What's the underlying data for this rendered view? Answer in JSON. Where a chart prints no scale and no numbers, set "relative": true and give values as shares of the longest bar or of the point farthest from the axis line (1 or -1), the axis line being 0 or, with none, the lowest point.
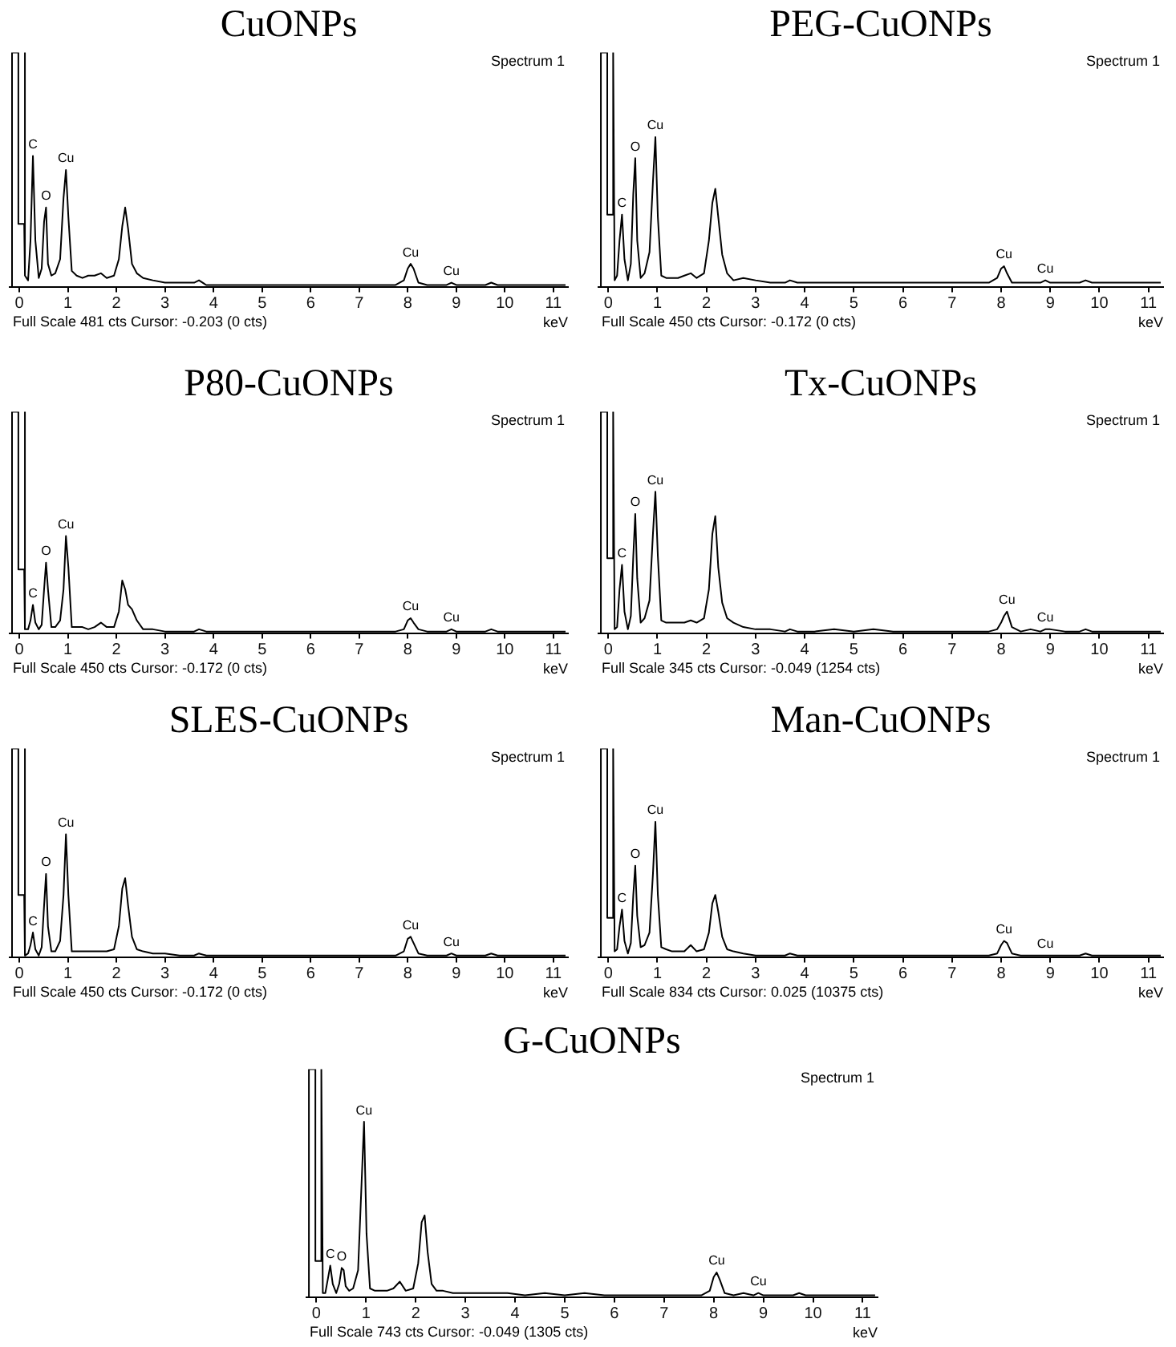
{
  "chart_data": [
    {
      "type": "line",
      "title": "CuONPs",
      "xlabel": "keV",
      "relative": true,
      "xlim": [
        -0.2,
        11.3
      ],
      "xticks": [
        0,
        1,
        2,
        3,
        4,
        5,
        6,
        7,
        8,
        9,
        10,
        11
      ],
      "grid": false,
      "marker": "none",
      "color": "#000000",
      "x": [
        -0.16,
        -0.15,
        -0.02,
        -0.02,
        0.1,
        0.1,
        0.13,
        0.18,
        0.23,
        0.28,
        0.33,
        0.4,
        0.46,
        0.51,
        0.55,
        0.59,
        0.66,
        0.74,
        0.84,
        0.91,
        0.96,
        1.01,
        1.08,
        1.18,
        1.3,
        1.42,
        1.55,
        1.68,
        1.8,
        1.95,
        2.05,
        2.12,
        2.18,
        2.24,
        2.32,
        2.42,
        2.55,
        2.75,
        3.0,
        3.3,
        3.6,
        3.7,
        3.85,
        4.2,
        4.6,
        5.0,
        5.4,
        5.8,
        6.2,
        6.6,
        7.0,
        7.4,
        7.75,
        7.92,
        8.0,
        8.06,
        8.12,
        8.22,
        8.4,
        8.6,
        8.8,
        8.9,
        9.0,
        9.3,
        9.6,
        9.72,
        9.85,
        10.2,
        10.6,
        11.0,
        11.25
      ],
      "values": [
        0,
        1,
        1,
        0.27,
        0.27,
        1,
        0.05,
        0.03,
        0.2,
        0.56,
        0.2,
        0.04,
        0.08,
        0.28,
        0.34,
        0.1,
        0.05,
        0.06,
        0.12,
        0.38,
        0.5,
        0.3,
        0.07,
        0.05,
        0.04,
        0.05,
        0.05,
        0.06,
        0.04,
        0.05,
        0.12,
        0.26,
        0.34,
        0.25,
        0.1,
        0.06,
        0.04,
        0.03,
        0.02,
        0.02,
        0.02,
        0.03,
        0.01,
        0.01,
        0.01,
        0.01,
        0.01,
        0.01,
        0.01,
        0.01,
        0.01,
        0.01,
        0.01,
        0.03,
        0.08,
        0.1,
        0.08,
        0.02,
        0.01,
        0.01,
        0.01,
        0.02,
        0.01,
        0.01,
        0.01,
        0.02,
        0.01,
        0.01,
        0.01,
        0.01,
        0.01
      ],
      "annotations": [
        "Spectrum 1",
        "Full Scale 481 cts Cursor: -0.203 (0 cts)",
        {
          "text": "C",
          "x": 0.28,
          "y": 0.56
        },
        {
          "text": "O",
          "x": 0.55,
          "y": 0.34
        },
        {
          "text": "Cu",
          "x": 0.96,
          "y": 0.5
        },
        {
          "text": "Cu",
          "x": 8.06,
          "y": 0.1
        },
        {
          "text": "Cu",
          "x": 8.9,
          "y": 0.02
        }
      ]
    },
    {
      "type": "line",
      "title": "PEG-CuONPs",
      "xlabel": "keV",
      "relative": true,
      "xlim": [
        -0.2,
        11.3
      ],
      "xticks": [
        0,
        1,
        2,
        3,
        4,
        5,
        6,
        7,
        8,
        9,
        10,
        11
      ],
      "grid": false,
      "marker": "none",
      "color": "#000000",
      "x": [
        -0.16,
        -0.15,
        -0.02,
        -0.02,
        0.1,
        0.1,
        0.13,
        0.18,
        0.23,
        0.28,
        0.33,
        0.4,
        0.46,
        0.51,
        0.55,
        0.59,
        0.66,
        0.74,
        0.84,
        0.91,
        0.96,
        1.01,
        1.08,
        1.18,
        1.3,
        1.42,
        1.55,
        1.68,
        1.8,
        1.95,
        2.05,
        2.12,
        2.18,
        2.24,
        2.32,
        2.42,
        2.55,
        2.75,
        3.0,
        3.3,
        3.6,
        3.7,
        3.85,
        4.2,
        4.6,
        5.0,
        5.4,
        5.8,
        6.2,
        6.6,
        7.0,
        7.4,
        7.75,
        7.92,
        8.0,
        8.06,
        8.12,
        8.22,
        8.4,
        8.6,
        8.8,
        8.9,
        9.0,
        9.3,
        9.6,
        9.72,
        9.85,
        10.2,
        10.6,
        11.0,
        11.25
      ],
      "values": [
        0,
        1,
        1,
        0.31,
        0.31,
        1,
        0.03,
        0.05,
        0.2,
        0.31,
        0.12,
        0.03,
        0.1,
        0.4,
        0.55,
        0.2,
        0.04,
        0.06,
        0.15,
        0.45,
        0.64,
        0.3,
        0.05,
        0.04,
        0.04,
        0.04,
        0.05,
        0.06,
        0.04,
        0.06,
        0.2,
        0.36,
        0.42,
        0.3,
        0.14,
        0.06,
        0.03,
        0.04,
        0.03,
        0.02,
        0.02,
        0.03,
        0.02,
        0.02,
        0.02,
        0.02,
        0.02,
        0.02,
        0.02,
        0.02,
        0.02,
        0.02,
        0.02,
        0.04,
        0.08,
        0.09,
        0.06,
        0.02,
        0.02,
        0.02,
        0.02,
        0.03,
        0.02,
        0.02,
        0.02,
        0.03,
        0.02,
        0.02,
        0.02,
        0.02,
        0.02
      ],
      "annotations": [
        "Spectrum 1",
        "Full Scale 450 cts Cursor: -0.172 (0 cts)",
        {
          "text": "C",
          "x": 0.28,
          "y": 0.31
        },
        {
          "text": "O",
          "x": 0.55,
          "y": 0.55
        },
        {
          "text": "Cu",
          "x": 0.96,
          "y": 0.64
        },
        {
          "text": "Cu",
          "x": 8.06,
          "y": 0.09
        },
        {
          "text": "Cu",
          "x": 8.9,
          "y": 0.03
        }
      ]
    },
    {
      "type": "line",
      "title": "P80-CuONPs",
      "xlabel": "keV",
      "relative": true,
      "xlim": [
        -0.2,
        11.3
      ],
      "xticks": [
        0,
        1,
        2,
        3,
        4,
        5,
        6,
        7,
        8,
        9,
        10,
        11
      ],
      "grid": false,
      "marker": "none",
      "color": "#000000",
      "x": [
        -0.16,
        -0.15,
        -0.02,
        -0.02,
        0.1,
        0.1,
        0.13,
        0.18,
        0.23,
        0.28,
        0.33,
        0.4,
        0.46,
        0.51,
        0.55,
        0.59,
        0.66,
        0.74,
        0.84,
        0.91,
        0.96,
        1.01,
        1.08,
        1.18,
        1.3,
        1.42,
        1.55,
        1.68,
        1.8,
        1.95,
        2.05,
        2.12,
        2.18,
        2.24,
        2.32,
        2.42,
        2.55,
        2.75,
        3.0,
        3.3,
        3.6,
        3.7,
        3.85,
        4.2,
        4.6,
        5.0,
        5.4,
        5.8,
        6.2,
        6.6,
        7.0,
        7.4,
        7.75,
        7.92,
        8.0,
        8.06,
        8.12,
        8.22,
        8.4,
        8.6,
        8.8,
        8.9,
        9.0,
        9.3,
        9.6,
        9.72,
        9.85,
        10.2,
        10.6,
        11.0,
        11.25
      ],
      "values": [
        0,
        1,
        1,
        0.29,
        0.29,
        1,
        0.02,
        0.02,
        0.06,
        0.13,
        0.05,
        0.02,
        0.04,
        0.2,
        0.32,
        0.2,
        0.03,
        0.03,
        0.06,
        0.2,
        0.44,
        0.3,
        0.03,
        0.03,
        0.03,
        0.02,
        0.03,
        0.05,
        0.03,
        0.03,
        0.1,
        0.24,
        0.2,
        0.13,
        0.11,
        0.06,
        0.02,
        0.02,
        0.01,
        0.01,
        0.01,
        0.02,
        0.01,
        0.01,
        0.01,
        0.01,
        0.01,
        0.01,
        0.01,
        0.01,
        0.01,
        0.01,
        0.01,
        0.02,
        0.06,
        0.07,
        0.05,
        0.02,
        0.01,
        0.01,
        0.01,
        0.02,
        0.01,
        0.01,
        0.01,
        0.02,
        0.01,
        0.01,
        0.01,
        0.01,
        0.01
      ],
      "annotations": [
        "Spectrum 1",
        "Full Scale 450 cts Cursor: -0.172 (0 cts)",
        {
          "text": "C",
          "x": 0.28,
          "y": 0.13
        },
        {
          "text": "O",
          "x": 0.55,
          "y": 0.32
        },
        {
          "text": "Cu",
          "x": 0.96,
          "y": 0.44
        },
        {
          "text": "Cu",
          "x": 8.06,
          "y": 0.07
        },
        {
          "text": "Cu",
          "x": 8.9,
          "y": 0.02
        }
      ]
    },
    {
      "type": "line",
      "title": "Tx-CuONPs",
      "xlabel": "keV",
      "relative": true,
      "xlim": [
        -0.2,
        11.3
      ],
      "xticks": [
        0,
        1,
        2,
        3,
        4,
        5,
        6,
        7,
        8,
        9,
        10,
        11
      ],
      "grid": false,
      "marker": "none",
      "color": "#000000",
      "x": [
        -0.16,
        -0.15,
        -0.02,
        -0.02,
        0.1,
        0.1,
        0.13,
        0.18,
        0.23,
        0.28,
        0.33,
        0.4,
        0.46,
        0.51,
        0.55,
        0.59,
        0.66,
        0.74,
        0.84,
        0.91,
        0.96,
        1.01,
        1.08,
        1.18,
        1.3,
        1.42,
        1.55,
        1.68,
        1.8,
        1.95,
        2.05,
        2.12,
        2.18,
        2.24,
        2.32,
        2.42,
        2.55,
        2.75,
        3.0,
        3.3,
        3.6,
        3.7,
        3.85,
        4.2,
        4.6,
        5.0,
        5.4,
        5.8,
        6.2,
        6.6,
        7.0,
        7.4,
        7.75,
        7.92,
        8.0,
        8.06,
        8.12,
        8.22,
        8.4,
        8.6,
        8.8,
        8.9,
        9.0,
        9.3,
        9.6,
        9.72,
        9.85,
        10.2,
        10.6,
        11.0,
        11.25
      ],
      "values": [
        0,
        1,
        1,
        0.34,
        0.34,
        1,
        0.02,
        0.03,
        0.2,
        0.31,
        0.1,
        0.02,
        0.08,
        0.35,
        0.54,
        0.25,
        0.05,
        0.07,
        0.15,
        0.45,
        0.64,
        0.35,
        0.06,
        0.05,
        0.05,
        0.05,
        0.05,
        0.06,
        0.05,
        0.07,
        0.2,
        0.45,
        0.53,
        0.3,
        0.14,
        0.07,
        0.05,
        0.03,
        0.02,
        0.02,
        0.01,
        0.02,
        0.01,
        0.01,
        0.02,
        0.01,
        0.02,
        0.01,
        0.01,
        0.01,
        0.01,
        0.01,
        0.01,
        0.02,
        0.05,
        0.08,
        0.1,
        0.03,
        0.01,
        0.02,
        0.01,
        0.02,
        0.02,
        0.01,
        0.01,
        0.02,
        0.01,
        0.01,
        0.01,
        0.01,
        0.01
      ],
      "annotations": [
        "Spectrum 1",
        "Full Scale 345 cts Cursor: -0.049 (1254 cts)",
        {
          "text": "C",
          "x": 0.28,
          "y": 0.31
        },
        {
          "text": "O",
          "x": 0.55,
          "y": 0.54
        },
        {
          "text": "Cu",
          "x": 0.96,
          "y": 0.64
        },
        {
          "text": "Cu",
          "x": 8.12,
          "y": 0.1
        },
        {
          "text": "Cu",
          "x": 8.9,
          "y": 0.02
        }
      ]
    },
    {
      "type": "line",
      "title": "SLES-CuONPs",
      "xlabel": "keV",
      "relative": true,
      "xlim": [
        -0.2,
        11.3
      ],
      "xticks": [
        0,
        1,
        2,
        3,
        4,
        5,
        6,
        7,
        8,
        9,
        10,
        11
      ],
      "grid": false,
      "marker": "none",
      "color": "#000000",
      "x": [
        -0.16,
        -0.15,
        -0.02,
        -0.02,
        0.1,
        0.1,
        0.13,
        0.18,
        0.23,
        0.28,
        0.33,
        0.4,
        0.46,
        0.51,
        0.55,
        0.59,
        0.66,
        0.74,
        0.84,
        0.91,
        0.96,
        1.01,
        1.08,
        1.18,
        1.3,
        1.42,
        1.55,
        1.68,
        1.8,
        1.95,
        2.05,
        2.12,
        2.18,
        2.24,
        2.32,
        2.42,
        2.55,
        2.75,
        3.0,
        3.3,
        3.6,
        3.7,
        3.85,
        4.2,
        4.6,
        5.0,
        5.4,
        5.8,
        6.2,
        6.6,
        7.0,
        7.4,
        7.75,
        7.92,
        8.0,
        8.06,
        8.12,
        8.22,
        8.4,
        8.6,
        8.8,
        8.9,
        9.0,
        9.3,
        9.6,
        9.72,
        9.85,
        10.2,
        10.6,
        11.0,
        11.25
      ],
      "values": [
        0,
        1,
        1,
        0.3,
        0.3,
        1,
        0.01,
        0.02,
        0.06,
        0.12,
        0.04,
        0.01,
        0.05,
        0.25,
        0.4,
        0.15,
        0.03,
        0.03,
        0.08,
        0.3,
        0.59,
        0.3,
        0.03,
        0.03,
        0.03,
        0.03,
        0.03,
        0.03,
        0.03,
        0.04,
        0.15,
        0.33,
        0.38,
        0.25,
        0.1,
        0.04,
        0.03,
        0.02,
        0.02,
        0.01,
        0.01,
        0.02,
        0.01,
        0.01,
        0.01,
        0.01,
        0.01,
        0.01,
        0.01,
        0.01,
        0.01,
        0.01,
        0.01,
        0.03,
        0.09,
        0.1,
        0.07,
        0.02,
        0.01,
        0.01,
        0.01,
        0.02,
        0.01,
        0.01,
        0.01,
        0.02,
        0.01,
        0.01,
        0.01,
        0.01,
        0.01
      ],
      "annotations": [
        "Spectrum 1",
        "Full Scale 450 cts Cursor: -0.172 (0 cts)",
        {
          "text": "C",
          "x": 0.28,
          "y": 0.12
        },
        {
          "text": "O",
          "x": 0.55,
          "y": 0.4
        },
        {
          "text": "Cu",
          "x": 0.96,
          "y": 0.59
        },
        {
          "text": "Cu",
          "x": 8.06,
          "y": 0.1
        },
        {
          "text": "Cu",
          "x": 8.9,
          "y": 0.02
        }
      ]
    },
    {
      "type": "line",
      "title": "Man-CuONPs",
      "xlabel": "keV",
      "relative": true,
      "xlim": [
        -0.2,
        11.3
      ],
      "xticks": [
        0,
        1,
        2,
        3,
        4,
        5,
        6,
        7,
        8,
        9,
        10,
        11
      ],
      "grid": false,
      "marker": "none",
      "color": "#000000",
      "x": [
        -0.16,
        -0.15,
        -0.02,
        -0.02,
        0.1,
        0.1,
        0.13,
        0.18,
        0.23,
        0.28,
        0.33,
        0.4,
        0.46,
        0.51,
        0.55,
        0.59,
        0.66,
        0.74,
        0.84,
        0.91,
        0.96,
        1.01,
        1.08,
        1.18,
        1.3,
        1.42,
        1.55,
        1.68,
        1.8,
        1.95,
        2.05,
        2.12,
        2.18,
        2.24,
        2.32,
        2.42,
        2.55,
        2.75,
        3.0,
        3.3,
        3.6,
        3.7,
        3.85,
        4.2,
        4.6,
        5.0,
        5.4,
        5.8,
        6.2,
        6.6,
        7.0,
        7.4,
        7.75,
        7.92,
        8.0,
        8.06,
        8.12,
        8.22,
        8.4,
        8.6,
        8.8,
        8.9,
        9.0,
        9.3,
        9.6,
        9.72,
        9.85,
        10.2,
        10.6,
        11.0,
        11.25
      ],
      "values": [
        0,
        1,
        1,
        0.19,
        0.19,
        1,
        0.03,
        0.04,
        0.15,
        0.23,
        0.08,
        0.02,
        0.07,
        0.3,
        0.44,
        0.2,
        0.05,
        0.06,
        0.12,
        0.4,
        0.65,
        0.3,
        0.05,
        0.04,
        0.03,
        0.03,
        0.03,
        0.06,
        0.03,
        0.04,
        0.12,
        0.26,
        0.3,
        0.22,
        0.1,
        0.04,
        0.03,
        0.02,
        0.01,
        0.01,
        0.01,
        0.02,
        0.01,
        0.01,
        0.01,
        0.01,
        0.01,
        0.01,
        0.01,
        0.01,
        0.01,
        0.01,
        0.01,
        0.02,
        0.06,
        0.08,
        0.07,
        0.02,
        0.01,
        0.01,
        0.01,
        0.01,
        0.01,
        0.01,
        0.01,
        0.02,
        0.01,
        0.01,
        0.01,
        0.01,
        0.01
      ],
      "annotations": [
        "Spectrum 1",
        "Full Scale 834 cts Cursor: 0.025 (10375 cts)",
        {
          "text": "C",
          "x": 0.28,
          "y": 0.23
        },
        {
          "text": "O",
          "x": 0.55,
          "y": 0.44
        },
        {
          "text": "Cu",
          "x": 0.96,
          "y": 0.65
        },
        {
          "text": "Cu",
          "x": 8.06,
          "y": 0.08
        },
        {
          "text": "Cu",
          "x": 8.9,
          "y": 0.01
        }
      ]
    },
    {
      "type": "line",
      "title": "G-CuONPs",
      "xlabel": "keV",
      "relative": true,
      "xlim": [
        -0.2,
        11.3
      ],
      "xticks": [
        0,
        1,
        2,
        3,
        4,
        5,
        6,
        7,
        8,
        9,
        10,
        11
      ],
      "grid": false,
      "marker": "none",
      "color": "#000000",
      "x": [
        -0.16,
        -0.15,
        -0.02,
        -0.02,
        0.1,
        0.1,
        0.13,
        0.18,
        0.23,
        0.28,
        0.33,
        0.4,
        0.46,
        0.51,
        0.55,
        0.59,
        0.66,
        0.74,
        0.84,
        0.91,
        0.96,
        1.01,
        1.08,
        1.18,
        1.3,
        1.42,
        1.55,
        1.68,
        1.8,
        1.95,
        2.05,
        2.12,
        2.18,
        2.24,
        2.32,
        2.42,
        2.55,
        2.75,
        3.0,
        3.3,
        3.6,
        3.7,
        3.85,
        4.2,
        4.6,
        5.0,
        5.4,
        5.8,
        6.2,
        6.6,
        7.0,
        7.4,
        7.75,
        7.92,
        8.0,
        8.06,
        8.12,
        8.22,
        8.4,
        8.6,
        8.8,
        8.9,
        9.0,
        9.3,
        9.6,
        9.72,
        9.85,
        10.2,
        10.6,
        11.0,
        11.25
      ],
      "values": [
        0,
        1,
        1,
        0.16,
        0.16,
        1,
        0.02,
        0.02,
        0.08,
        0.14,
        0.06,
        0.02,
        0.06,
        0.13,
        0.12,
        0.05,
        0.03,
        0.04,
        0.12,
        0.5,
        0.77,
        0.28,
        0.04,
        0.03,
        0.03,
        0.03,
        0.04,
        0.07,
        0.03,
        0.04,
        0.15,
        0.33,
        0.36,
        0.2,
        0.06,
        0.03,
        0.03,
        0.02,
        0.02,
        0.02,
        0.02,
        0.02,
        0.02,
        0.01,
        0.02,
        0.01,
        0.02,
        0.01,
        0.01,
        0.01,
        0.01,
        0.01,
        0.01,
        0.03,
        0.09,
        0.11,
        0.08,
        0.02,
        0.01,
        0.02,
        0.01,
        0.02,
        0.01,
        0.01,
        0.01,
        0.02,
        0.01,
        0.01,
        0.01,
        0.01,
        0.01
      ],
      "annotations": [
        "Spectrum 1",
        "Full Scale 743 cts Cursor: -0.049 (1305 cts)",
        {
          "text": "C",
          "x": 0.28,
          "y": 0.14
        },
        {
          "text": "O",
          "x": 0.51,
          "y": 0.13
        },
        {
          "text": "Cu",
          "x": 0.96,
          "y": 0.77
        },
        {
          "text": "Cu",
          "x": 8.06,
          "y": 0.11
        },
        {
          "text": "Cu",
          "x": 8.9,
          "y": 0.02
        }
      ]
    }
  ]
}
